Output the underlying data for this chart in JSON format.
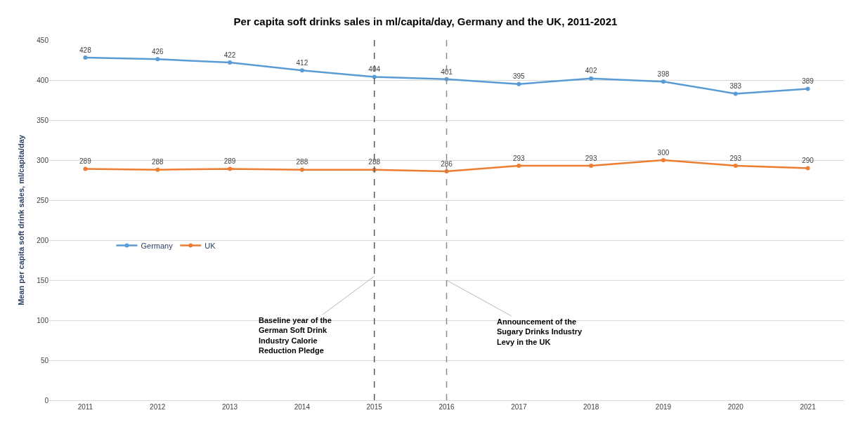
{
  "chart_data": {
    "type": "line",
    "title": "Per capita soft drinks sales in ml/capita/day, Germany and the UK, 2011-2021",
    "ylabel": "Mean per capita soft drink sales, ml/capita/day",
    "categories": [
      "2011",
      "2012",
      "2013",
      "2014",
      "2015",
      "2016",
      "2017",
      "2018",
      "2019",
      "2020",
      "2021"
    ],
    "series": [
      {
        "name": "Germany",
        "color": "#5b9bd5",
        "values": [
          428,
          426,
          422,
          412,
          404,
          401,
          395,
          402,
          398,
          383,
          389
        ]
      },
      {
        "name": "UK",
        "color": "#ed7d31",
        "values": [
          289,
          288,
          289,
          288,
          288,
          286,
          293,
          293,
          300,
          293,
          290
        ]
      }
    ],
    "ylim": [
      0,
      450
    ],
    "yticks": [
      0,
      50,
      100,
      150,
      200,
      250,
      300,
      350,
      400,
      450
    ],
    "grid": "y",
    "legend": "left",
    "marker": "circle",
    "line_style": "solid",
    "data_labels": true,
    "ref_lines": [
      {
        "axis": "x",
        "value": "2015",
        "color": "#595959",
        "line_style": "dashed"
      },
      {
        "axis": "x",
        "value": "2016",
        "color": "#8c8c8c",
        "line_style": "dashed"
      }
    ],
    "annotations": [
      {
        "text": "Baseline year of the German Soft Drink Industry Calorie Reduction Pledge",
        "x": "2015",
        "y": 155
      },
      {
        "text": "Announcement of the Sugary Drinks Industry Levy in the UK",
        "x": "2016",
        "y": 150
      }
    ]
  }
}
